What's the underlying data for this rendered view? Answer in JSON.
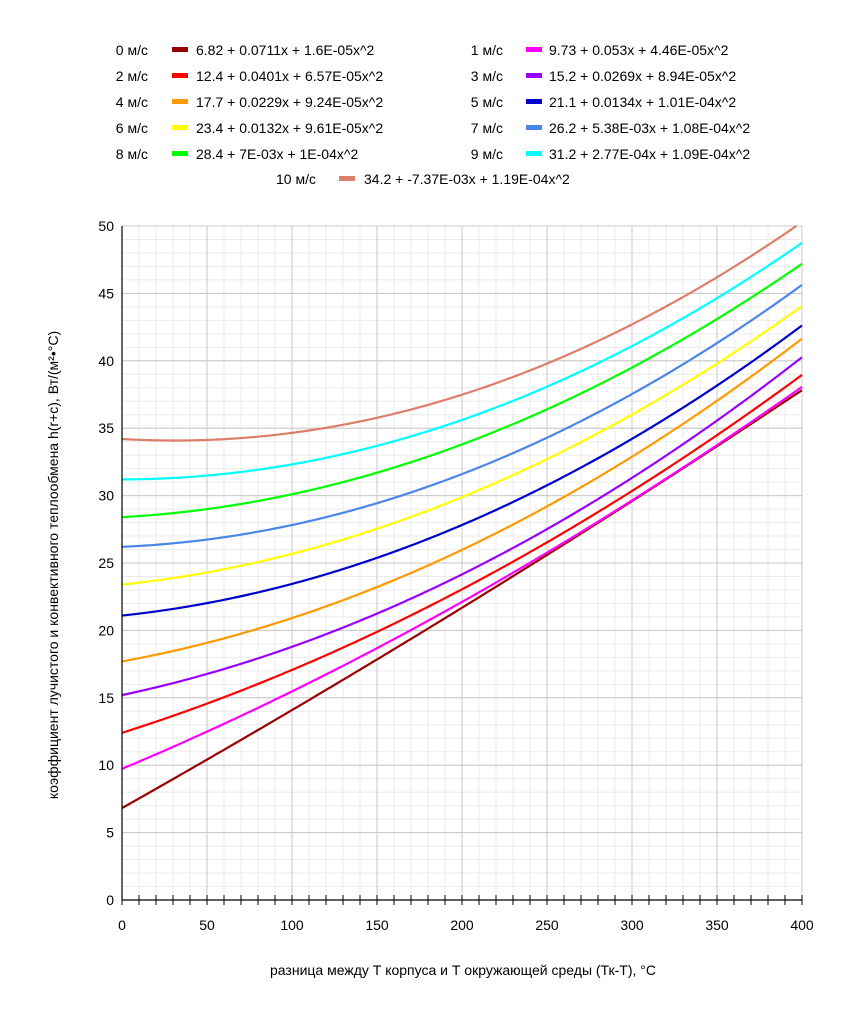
{
  "chart_data": {
    "type": "line",
    "title": "",
    "xlabel": "разница между Т корпуса и Т окружающей среды (Тк-Т), °С",
    "ylabel": "коэффициент лучистого и конвективного теплообмена h(r+c), Вт/(м²•°С)",
    "xlim": [
      0,
      400
    ],
    "ylim": [
      0,
      50
    ],
    "x_ticks": [
      "0",
      "50",
      "100",
      "150",
      "200",
      "250",
      "300",
      "350",
      "400"
    ],
    "y_ticks": [
      "0",
      "5",
      "10",
      "15",
      "20",
      "25",
      "30",
      "35",
      "40",
      "45",
      "50"
    ],
    "x_minor_step": 10,
    "y_minor_step": 1,
    "grid": true,
    "legend_position": "top",
    "series": [
      {
        "name": "0 м/с",
        "equation": "6.82 + 0.0711x + 1.6E-05x^2",
        "color": "#990000",
        "coef": [
          6.82,
          0.0711,
          1.6e-05
        ]
      },
      {
        "name": "1 м/с",
        "equation": "9.73 + 0.053x + 4.46E-05x^2",
        "color": "#ff00ff",
        "coef": [
          9.73,
          0.053,
          4.46e-05
        ]
      },
      {
        "name": "2 м/с",
        "equation": "12.4 + 0.0401x + 6.57E-05x^2",
        "color": "#ff0000",
        "coef": [
          12.4,
          0.0401,
          6.57e-05
        ]
      },
      {
        "name": "3 м/с",
        "equation": "15.2 + 0.0269x + 8.94E-05x^2",
        "color": "#9900ff",
        "coef": [
          15.2,
          0.0269,
          8.94e-05
        ]
      },
      {
        "name": "4 м/с",
        "equation": "17.7 + 0.0229x + 9.24E-05x^2",
        "color": "#ff9900",
        "coef": [
          17.7,
          0.0229,
          9.24e-05
        ]
      },
      {
        "name": "5 м/с",
        "equation": "21.1 + 0.0134x + 1.01E-04x^2",
        "color": "#0000cc",
        "coef": [
          21.1,
          0.0134,
          0.000101
        ]
      },
      {
        "name": "6 м/с",
        "equation": "23.4 + 0.0132x + 9.61E-05x^2",
        "color": "#ffff00",
        "coef": [
          23.4,
          0.0132,
          9.61e-05
        ]
      },
      {
        "name": "7 м/с",
        "equation": "26.2 + 5.38E-03x + 1.08E-04x^2",
        "color": "#4a86e8",
        "coef": [
          26.2,
          0.00538,
          0.000108
        ]
      },
      {
        "name": "8 м/с",
        "equation": "28.4 + 7E-03x + 1E-04x^2",
        "color": "#00ff00",
        "coef": [
          28.4,
          0.007,
          0.0001
        ]
      },
      {
        "name": "9 м/с",
        "equation": "31.2 + 2.77E-04x + 1.09E-04x^2",
        "color": "#00ffff",
        "coef": [
          31.2,
          0.000277,
          0.000109
        ]
      },
      {
        "name": "10 м/с",
        "equation": "34.2 + -7.37E-03x + 1.19E-04x^2",
        "color": "#dd7e6b",
        "coef": [
          34.2,
          -0.00737,
          0.000119
        ]
      }
    ]
  }
}
